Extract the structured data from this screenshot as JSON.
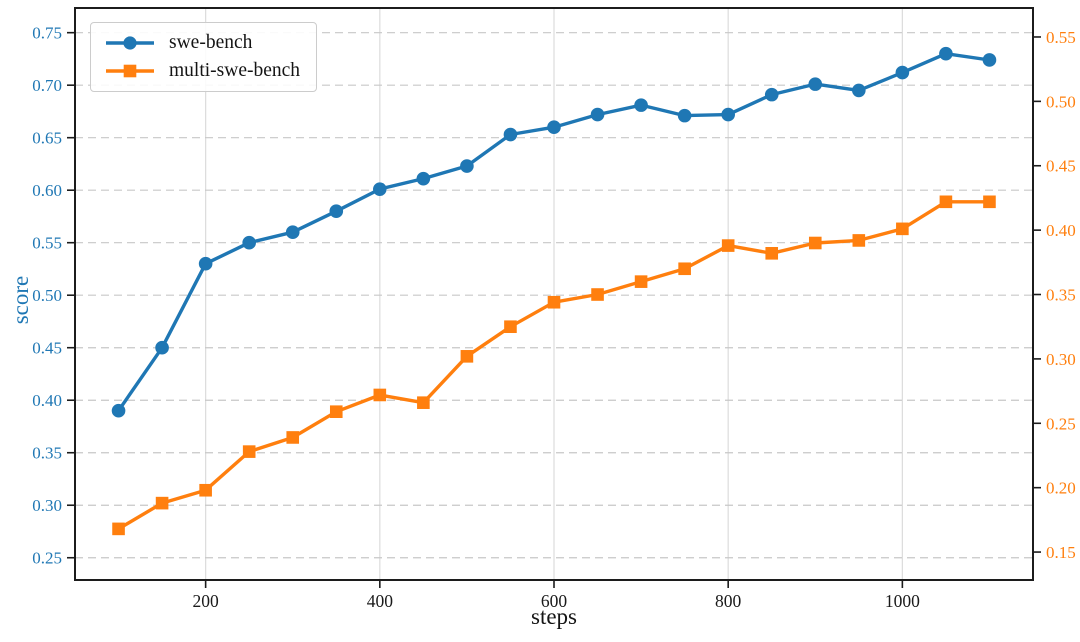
{
  "figure": {
    "background": "#ffffff"
  },
  "chart_data": {
    "type": "line",
    "title": "",
    "xlabel": "steps",
    "ylabel_left": "score",
    "ylabel_right": "",
    "x": [
      100,
      150,
      200,
      250,
      300,
      350,
      400,
      450,
      500,
      550,
      600,
      650,
      700,
      750,
      800,
      850,
      900,
      950,
      1000,
      1050,
      1100
    ],
    "series": [
      {
        "name": "swe-bench",
        "axis": "left",
        "color": "#1f77b4",
        "marker": "circle",
        "values": [
          0.39,
          0.45,
          0.53,
          0.55,
          0.56,
          0.58,
          0.601,
          0.611,
          0.623,
          0.653,
          0.66,
          0.672,
          0.681,
          0.671,
          0.672,
          0.691,
          0.701,
          0.695,
          0.712,
          0.73,
          0.724
        ]
      },
      {
        "name": "multi-swe-bench",
        "axis": "right",
        "color": "#ff7f0e",
        "marker": "square",
        "values": [
          0.168,
          0.188,
          0.198,
          0.228,
          0.239,
          0.259,
          0.272,
          0.266,
          0.302,
          0.325,
          0.344,
          0.35,
          0.36,
          0.37,
          0.388,
          0.382,
          0.39,
          0.392,
          0.401,
          0.422,
          0.422
        ]
      }
    ],
    "xlim": [
      50,
      1150
    ],
    "ylim_left": [
      0.2288,
      0.7735
    ],
    "ylim_right": [
      0.1283,
      0.5725
    ],
    "xticks": [
      200,
      400,
      600,
      800,
      1000
    ],
    "yticks_left": [
      0.25,
      0.3,
      0.35,
      0.4,
      0.45,
      0.5,
      0.55,
      0.6,
      0.65,
      0.7,
      0.75
    ],
    "yticks_right": [
      0.15,
      0.2,
      0.25,
      0.3,
      0.35,
      0.4,
      0.45,
      0.5,
      0.55
    ],
    "axis_colors": {
      "left": "#1f77b4",
      "right": "#ff7f0e",
      "x": "#1a1a1a"
    },
    "grid": {
      "horizontal": "dashed",
      "vertical": "solid",
      "h_color": "#c8c8c8",
      "v_color": "#dcdcdc"
    },
    "spine_color": "#1c1c1c",
    "legend_position": "upper-left"
  },
  "legend": {
    "items": [
      {
        "label": "swe-bench"
      },
      {
        "label": "multi-swe-bench"
      }
    ]
  }
}
